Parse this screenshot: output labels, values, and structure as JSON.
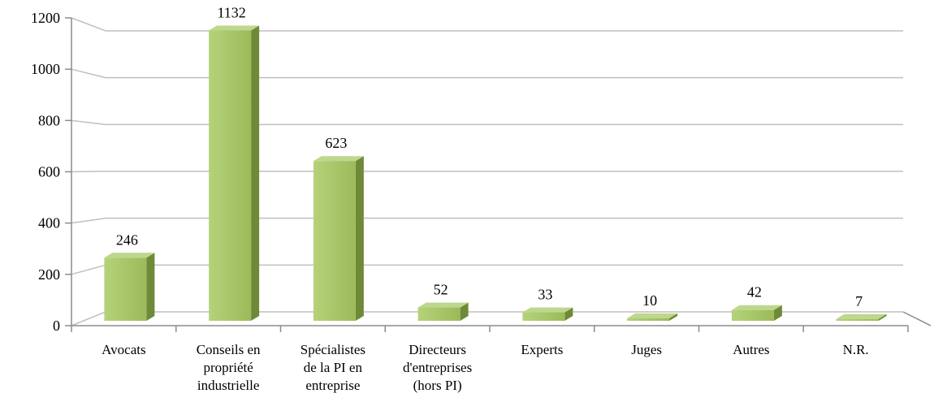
{
  "chart_data": {
    "type": "bar",
    "title": "",
    "xlabel": "",
    "ylabel": "",
    "categories": [
      "Avocats",
      "Conseils en propriété industrielle",
      "Spécialistes de la PI en entreprise",
      "Directeurs d'entreprises (hors PI)",
      "Experts",
      "Juges",
      "Autres",
      "N.R."
    ],
    "category_lines": [
      [
        "Avocats"
      ],
      [
        "Conseils en",
        "propriété",
        "industrielle"
      ],
      [
        "Spécialistes",
        "de la PI en",
        "entreprise"
      ],
      [
        "Directeurs",
        "d'entreprises",
        "(hors PI)"
      ],
      [
        "Experts"
      ],
      [
        "Juges"
      ],
      [
        "Autres"
      ],
      [
        "N.R."
      ]
    ],
    "values": [
      246,
      1132,
      623,
      52,
      33,
      10,
      42,
      7
    ],
    "ylim": [
      0,
      1200
    ],
    "yticks": [
      0,
      200,
      400,
      600,
      800,
      1000,
      1200
    ],
    "grid": true,
    "legend": "none",
    "style": "3d-column"
  },
  "colors": {
    "bar_front": "#9bbb59",
    "bar_front_light": "#b5d27a",
    "bar_side": "#6e8a38",
    "bar_top": "#bdd78c",
    "grid": "#bfbfbf",
    "axis": "#8c8c8c"
  }
}
